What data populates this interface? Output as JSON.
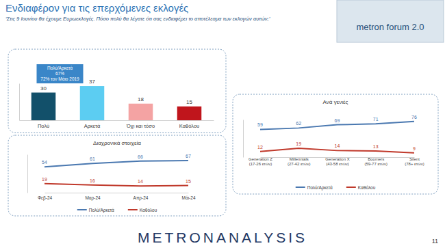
{
  "title": "Ενδιαφέρον για τις επερχόμενες εκλογές",
  "subtitle": "‘Στις 9 Ιουνίου θα έχουμε Ευρωεκλογές. Πόσο πολύ θα λέγατε ότι σας ενδιαφέρει το αποτέλεσμα των εκλογών αυτών;’",
  "logo": "metron forum 2.0",
  "footer": "METRONANALYSIS",
  "page_number": "11",
  "chart_data": [
    {
      "type": "bar",
      "categories": [
        "Πολύ",
        "Αρκετά",
        "Όχι και τόσο",
        "Καθόλου"
      ],
      "values": [
        30,
        37,
        18,
        15
      ],
      "colors": [
        "#12506a",
        "#5ccdf2",
        "#f4a3a3",
        "#c0151c"
      ],
      "ylim": [
        0,
        40
      ],
      "tick_labels": "x",
      "data_labels": true,
      "annotations": [
        "Πολύ/Αρκετά",
        "67%",
        "72% τον Μάιο 2019"
      ]
    },
    {
      "type": "line",
      "title": "Διαχρονικά στοιχεία",
      "categories": [
        "Φεβ-24",
        "Μαρ-24",
        "Απρ-24",
        "Μάι-24"
      ],
      "series": [
        {
          "name": "Πολύ/Αρκετά",
          "color": "#4a78b0",
          "values": [
            54,
            61,
            66,
            67
          ]
        },
        {
          "name": "Καθόλου",
          "color": "#c0392b",
          "values": [
            19,
            16,
            14,
            15
          ]
        }
      ],
      "ylim": [
        0,
        80
      ],
      "tick_labels": "x",
      "data_labels": true,
      "legend": "bottom"
    },
    {
      "type": "line",
      "title": "Ανά γενιές",
      "categories": [
        "Generation Z (17-26 ετών)",
        "Millennials (27-42 ετών)",
        "Generation X (43-58 ετών)",
        "Boomers (59-77 ετών)",
        "Silent (78+ ετών)"
      ],
      "series": [
        {
          "name": "Πολύ/Αρκετά",
          "color": "#4a78b0",
          "values": [
            59,
            62,
            69,
            71,
            76
          ]
        },
        {
          "name": "Καθόλου",
          "color": "#c0392b",
          "values": [
            12,
            19,
            14,
            13,
            9
          ]
        }
      ],
      "ylim": [
        0,
        80
      ],
      "tick_labels": "x",
      "data_labels": true,
      "legend": "bottom"
    }
  ]
}
